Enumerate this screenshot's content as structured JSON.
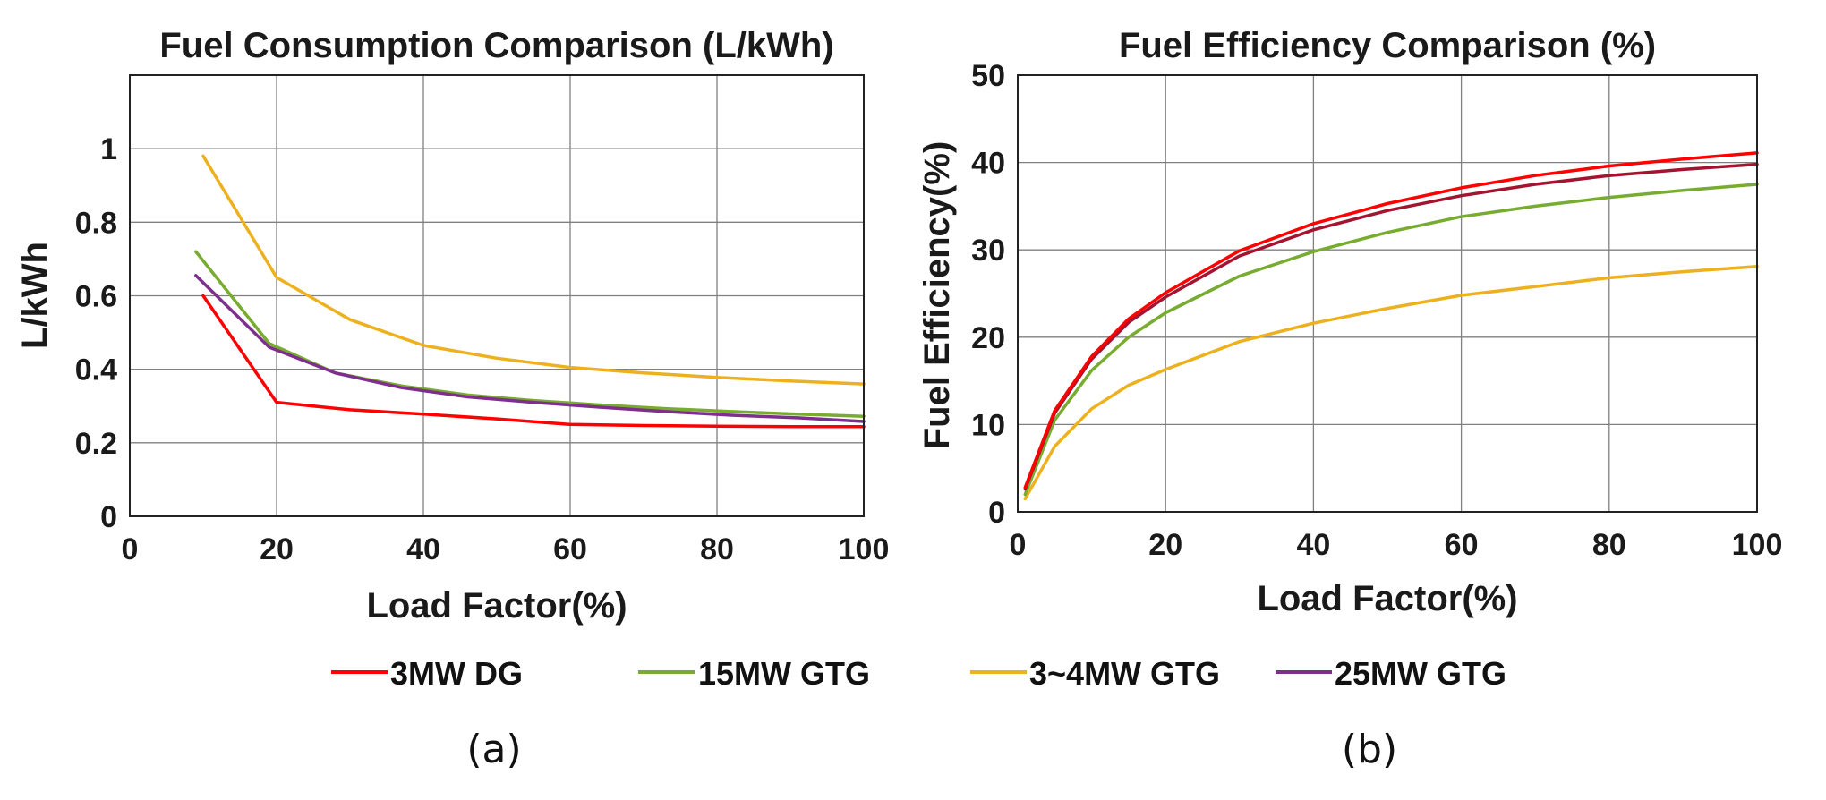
{
  "chart_data": [
    {
      "type": "line",
      "title": "Fuel Consumption Comparison (L/kWh)",
      "xlabel": "Load Factor(%)",
      "ylabel": "L/kWh",
      "xlim": [
        0,
        100
      ],
      "ylim": [
        0,
        1.2
      ],
      "xticks": [
        0,
        20,
        40,
        60,
        80,
        100
      ],
      "yticks": [
        0,
        0.2,
        0.4,
        0.6,
        0.8,
        1
      ],
      "xtick_labels": [
        "0",
        "20",
        "40",
        "60",
        "80",
        "100"
      ],
      "ytick_labels": [
        "0",
        "0.2",
        "0.4",
        "0.6",
        "0.8",
        "1"
      ],
      "grid": true,
      "caption": "(a)",
      "series": [
        {
          "name": "3~4MW GTG",
          "color": "#EDB120",
          "x": [
            10,
            20,
            30,
            40,
            50,
            60,
            70,
            80,
            90,
            100
          ],
          "y": [
            0.98,
            0.65,
            0.535,
            0.465,
            0.43,
            0.405,
            0.39,
            0.378,
            0.368,
            0.36
          ]
        },
        {
          "name": "15MW GTG",
          "color": "#77AC30",
          "x": [
            9,
            19,
            28,
            37,
            46,
            55,
            64,
            73,
            82,
            91,
            100
          ],
          "y": [
            0.72,
            0.47,
            0.39,
            0.355,
            0.33,
            0.315,
            0.303,
            0.293,
            0.285,
            0.278,
            0.272
          ]
        },
        {
          "name": "25MW GTG",
          "color": "#7E2F8E",
          "x": [
            9,
            19,
            28,
            37,
            46,
            55,
            64,
            73,
            82,
            91,
            100
          ],
          "y": [
            0.655,
            0.46,
            0.39,
            0.35,
            0.325,
            0.31,
            0.297,
            0.285,
            0.275,
            0.268,
            0.258
          ]
        },
        {
          "name": "3MW DG",
          "color": "#FF0000",
          "x": [
            10,
            20,
            30,
            40,
            50,
            60,
            70,
            80,
            90,
            100
          ],
          "y": [
            0.6,
            0.31,
            0.29,
            0.278,
            0.265,
            0.25,
            0.247,
            0.245,
            0.244,
            0.244
          ]
        }
      ]
    },
    {
      "type": "line",
      "title": "Fuel Efficiency Comparison (%)",
      "xlabel": "Load Factor(%)",
      "ylabel": "Fuel Efficiency(%)",
      "xlim": [
        0,
        100
      ],
      "ylim": [
        0,
        50
      ],
      "xticks": [
        0,
        20,
        40,
        60,
        80,
        100
      ],
      "yticks": [
        0,
        10,
        20,
        30,
        40,
        50
      ],
      "xtick_labels": [
        "0",
        "20",
        "40",
        "60",
        "80",
        "100"
      ],
      "ytick_labels": [
        "0",
        "10",
        "20",
        "30",
        "40",
        "50"
      ],
      "grid": true,
      "caption": "(b)",
      "series": [
        {
          "color": "#EDB120",
          "x": [
            1,
            5,
            10,
            15,
            20,
            30,
            40,
            50,
            60,
            70,
            80,
            90,
            100
          ],
          "y": [
            1.5,
            7.5,
            11.8,
            14.5,
            16.3,
            19.5,
            21.6,
            23.3,
            24.8,
            25.8,
            26.8,
            27.5,
            28.1
          ]
        },
        {
          "color": "#77AC30",
          "x": [
            1,
            5,
            10,
            15,
            20,
            30,
            40,
            50,
            60,
            70,
            80,
            90,
            100
          ],
          "y": [
            2.0,
            10.5,
            16.2,
            20.0,
            22.8,
            27.0,
            29.8,
            32.0,
            33.8,
            35.0,
            36.0,
            36.8,
            37.5
          ]
        },
        {
          "color": "#A2142F",
          "x": [
            1,
            5,
            10,
            15,
            20,
            30,
            40,
            50,
            60,
            70,
            80,
            90,
            100
          ],
          "y": [
            2.6,
            11.3,
            17.5,
            21.7,
            24.6,
            29.3,
            32.3,
            34.5,
            36.2,
            37.5,
            38.5,
            39.2,
            39.8
          ]
        },
        {
          "color": "#FF0000",
          "x": [
            1,
            5,
            10,
            15,
            20,
            30,
            40,
            50,
            60,
            70,
            80,
            90,
            100
          ],
          "y": [
            2.8,
            11.6,
            17.8,
            22.1,
            25.1,
            29.9,
            33.0,
            35.3,
            37.1,
            38.5,
            39.6,
            40.4,
            41.1
          ]
        }
      ]
    }
  ],
  "legend": [
    {
      "label": "3MW DG",
      "color": "#FF0000"
    },
    {
      "label": "15MW GTG",
      "color": "#77AC30"
    },
    {
      "label": "3~4MW GTG",
      "color": "#EDB120"
    },
    {
      "label": "25MW GTG",
      "color": "#7E2F8E"
    }
  ]
}
